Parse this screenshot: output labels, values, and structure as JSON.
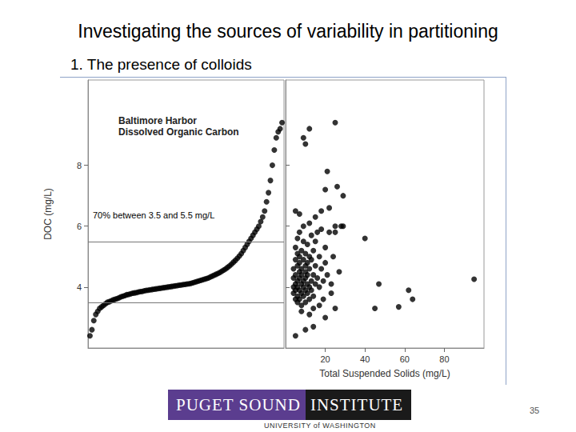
{
  "slide": {
    "title": "Investigating the sources of variability in partitioning",
    "subtitle": "1. The presence of colloids",
    "logo_parts": [
      "PUGET SOUND",
      "INSTITUTE"
    ],
    "logo_sub": "UNIVERSITY of WASHINGTON",
    "page": "35"
  },
  "chart_data": [
    {
      "type": "scatter",
      "title": "Baltimore Harbor",
      "subtitle": "Dissolved Organic Carbon",
      "ylabel": "DOC (mg/L)",
      "annotation": "70% between 3.5 and 5.5 mg/L",
      "reference_lines": [
        3.5,
        5.5
      ],
      "color": "#000000",
      "marker": "circle",
      "grid": false,
      "tick_labels": "y",
      "xlim": [
        0,
        101
      ],
      "ylim": [
        2,
        10.8
      ],
      "yticks": [
        4,
        6,
        8
      ],
      "x": [
        1,
        2,
        3,
        4,
        5,
        6,
        7,
        8,
        9,
        10,
        11,
        12,
        13,
        14,
        15,
        16,
        17,
        18,
        19,
        20,
        21,
        22,
        23,
        24,
        25,
        26,
        27,
        28,
        29,
        30,
        31,
        32,
        33,
        34,
        35,
        36,
        37,
        38,
        39,
        40,
        41,
        42,
        43,
        44,
        45,
        46,
        47,
        48,
        49,
        50,
        51,
        52,
        53,
        54,
        55,
        56,
        57,
        58,
        59,
        60,
        61,
        62,
        63,
        64,
        65,
        66,
        67,
        68,
        69,
        70,
        71,
        72,
        73,
        74,
        75,
        76,
        77,
        78,
        79,
        80,
        81,
        82,
        83,
        84,
        85,
        86,
        87,
        88,
        89,
        90,
        91,
        92,
        93,
        94,
        95,
        96,
        97,
        98,
        99,
        100
      ],
      "values": [
        2.4,
        2.6,
        2.9,
        3.1,
        3.2,
        3.3,
        3.35,
        3.4,
        3.45,
        3.5,
        3.52,
        3.55,
        3.58,
        3.6,
        3.62,
        3.65,
        3.68,
        3.7,
        3.72,
        3.75,
        3.76,
        3.78,
        3.8,
        3.81,
        3.82,
        3.84,
        3.85,
        3.86,
        3.88,
        3.89,
        3.9,
        3.91,
        3.92,
        3.93,
        3.94,
        3.95,
        3.96,
        3.97,
        3.98,
        3.99,
        4.0,
        4.01,
        4.02,
        4.03,
        4.04,
        4.05,
        4.06,
        4.07,
        4.08,
        4.09,
        4.1,
        4.11,
        4.12,
        4.14,
        4.16,
        4.18,
        4.2,
        4.22,
        4.24,
        4.26,
        4.28,
        4.3,
        4.33,
        4.36,
        4.39,
        4.42,
        4.45,
        4.48,
        4.52,
        4.56,
        4.6,
        4.65,
        4.7,
        4.76,
        4.82,
        4.88,
        4.95,
        5.02,
        5.1,
        5.2,
        5.3,
        5.4,
        5.5,
        5.6,
        5.7,
        5.8,
        5.9,
        6.0,
        6.15,
        6.3,
        6.5,
        6.8,
        7.1,
        7.5,
        8.0,
        8.5,
        8.9,
        9.1,
        9.2,
        9.4
      ]
    },
    {
      "type": "scatter",
      "xlabel": "Total Suspended Solids (mg/L)",
      "color": "#000000",
      "marker": "circle",
      "grid": false,
      "tick_labels": "x",
      "xlim": [
        0,
        100
      ],
      "xticks": [
        20,
        40,
        60,
        80
      ],
      "ylim": [
        2,
        10.8
      ],
      "yticks": [
        4,
        6,
        8
      ],
      "x": [
        4,
        4,
        4,
        4,
        5,
        5,
        5,
        5,
        5,
        5,
        6,
        6,
        6,
        6,
        6,
        6,
        6,
        7,
        7,
        7,
        7,
        7,
        7,
        7,
        8,
        8,
        8,
        8,
        8,
        8,
        9,
        9,
        9,
        9,
        9,
        9,
        10,
        10,
        10,
        10,
        10,
        10,
        11,
        11,
        11,
        11,
        11,
        12,
        12,
        12,
        12,
        13,
        13,
        13,
        13,
        14,
        14,
        14,
        15,
        15,
        15,
        16,
        16,
        17,
        17,
        18,
        18,
        19,
        20,
        20,
        21,
        22,
        23,
        24,
        25,
        27,
        29,
        19,
        23,
        17,
        5,
        10,
        14,
        20,
        14,
        25,
        8,
        12,
        5,
        7,
        12,
        15,
        18,
        25,
        28,
        20,
        22,
        26,
        29,
        21,
        9,
        10,
        12,
        25,
        40,
        47,
        45,
        57,
        62,
        64,
        95
      ],
      "values": [
        4.0,
        4.3,
        3.8,
        4.6,
        3.6,
        4.1,
        4.4,
        4.9,
        5.3,
        3.9,
        4.2,
        3.7,
        4.7,
        5.1,
        4.0,
        3.5,
        5.6,
        4.3,
        3.9,
        4.5,
        5.0,
        3.6,
        4.8,
        5.8,
        4.1,
        4.4,
        3.8,
        5.2,
        4.6,
        3.4,
        4.2,
        4.9,
        3.7,
        5.5,
        4.0,
        6.0,
        4.3,
        3.9,
        4.7,
        5.1,
        3.5,
        4.5,
        4.1,
        4.8,
        3.8,
        5.4,
        4.4,
        4.0,
        4.6,
        5.0,
        3.6,
        4.2,
        4.9,
        3.9,
        5.7,
        4.4,
        3.7,
        5.2,
        4.1,
        4.7,
        5.5,
        4.3,
        5.8,
        4.0,
        5.0,
        4.6,
        5.9,
        4.2,
        4.8,
        5.3,
        4.4,
        5.8,
        4.1,
        5.0,
        5.8,
        4.5,
        6.0,
        3.6,
        3.8,
        3.4,
        2.4,
        2.6,
        2.7,
        3.0,
        3.3,
        3.3,
        3.2,
        3.1,
        6.5,
        6.4,
        6.1,
        6.3,
        6.5,
        6.0,
        6.0,
        7.2,
        6.6,
        7.3,
        7.0,
        7.8,
        8.9,
        8.7,
        9.2,
        9.4,
        5.6,
        4.1,
        3.3,
        3.35,
        3.9,
        3.6,
        4.26
      ]
    }
  ]
}
